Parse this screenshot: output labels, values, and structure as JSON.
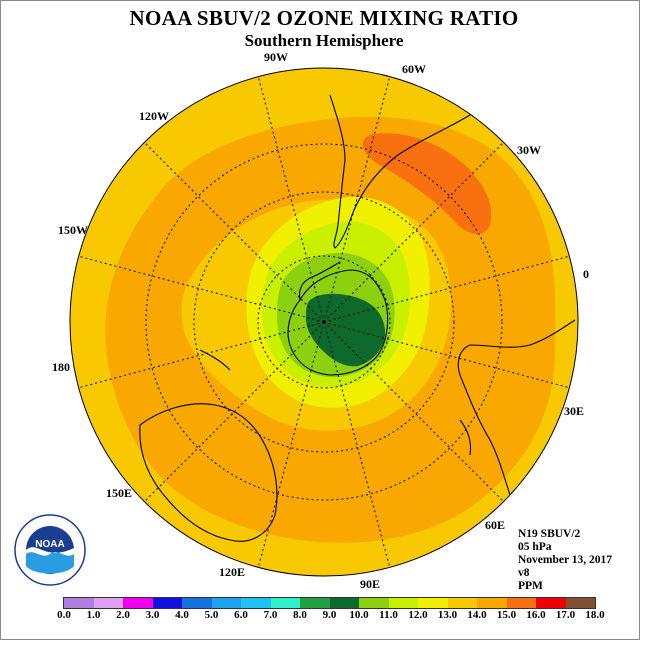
{
  "title": "NOAA SBUV/2 OZONE MIXING RATIO",
  "subtitle": "Southern Hemisphere",
  "longitude_labels": {
    "lon_90W": "90W",
    "lon_60W": "60W",
    "lon_30W": "30W",
    "lon_0": "0",
    "lon_30E": "30E",
    "lon_60E": "60E",
    "lon_90E": "90E",
    "lon_120E": "120E",
    "lon_150E": "150E",
    "lon_180": "180",
    "lon_150W": "150W",
    "lon_120W": "120W"
  },
  "info": {
    "satellite": "N19 SBUV/2",
    "pressure": "05 hPa",
    "date": "November 13, 2017",
    "version": "v8",
    "units": "PPM"
  },
  "colorbar": {
    "colors": [
      "#b07ee0",
      "#e0a0f0",
      "#f000f0",
      "#1010e0",
      "#1570e0",
      "#20a0f0",
      "#20c0f0",
      "#30f0c8",
      "#20a040",
      "#0e6a2c",
      "#8cd010",
      "#c8f000",
      "#f0f000",
      "#f8c800",
      "#f8a800",
      "#f87010",
      "#f00000",
      "#805030"
    ],
    "ticks": [
      "0.0",
      "1.0",
      "2.0",
      "3.0",
      "4.0",
      "5.0",
      "6.0",
      "7.0",
      "8.0",
      "9.0",
      "10.0",
      "11.0",
      "12.0",
      "13.0",
      "14.0",
      "15.0",
      "16.0",
      "17.0",
      "18.0"
    ]
  },
  "map_colors": {
    "level_13_14": "#f8c800",
    "level_14_15": "#f8a800",
    "level_15_16": "#f87010",
    "level_12_13": "#f0f000",
    "level_11_12": "#c8f000",
    "level_10_11": "#8cd010",
    "level_9_10": "#0e6a2c"
  },
  "logo": {
    "text": "NOAA"
  }
}
